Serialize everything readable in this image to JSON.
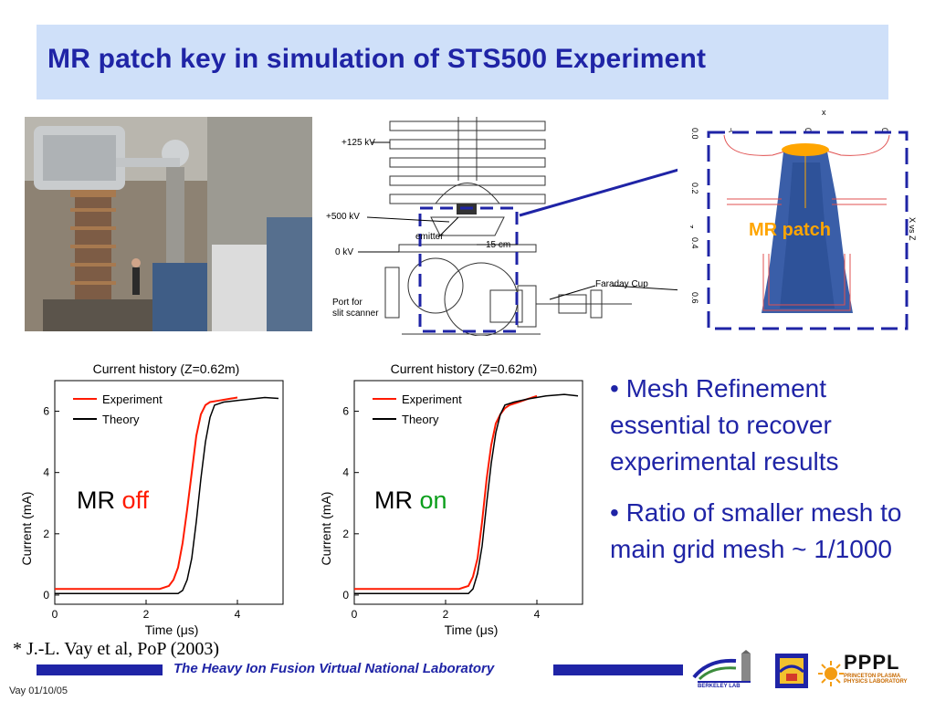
{
  "slide": {
    "title": "MR patch key in simulation of STS500 Experiment"
  },
  "schematic": {
    "label_125kv": "+125 kV",
    "label_500kv": "+500 kV",
    "label_0kv": "0 kV",
    "label_emitter": "emitter",
    "label_15cm": "15 cm",
    "label_faraday": "Faraday Cup",
    "label_port": "Port for",
    "label_scanner": "slit scanner"
  },
  "simulation": {
    "mr_patch_label": "MR patch",
    "x_axis_label": "x",
    "z_axis_label": "z",
    "side_label": "X vs Z",
    "x_ticks": [
      "-0.2",
      "0.0",
      "0.2"
    ],
    "z_ticks": [
      "0.0",
      "0.2",
      "0.4",
      "0.6"
    ]
  },
  "mr_off_label": {
    "prefix": "MR ",
    "state": "off"
  },
  "mr_on_label": {
    "prefix": "MR ",
    "state": "on"
  },
  "bullets": [
    "• Mesh Refinement essential to recover experimental results",
    "•  Ratio of smaller mesh to main grid mesh ~ 1/1000"
  ],
  "citation": "* J.-L. Vay et al, PoP (2003)",
  "footer": {
    "lab_name": "The Heavy Ion Fusion Virtual National Laboratory",
    "author_date": "Vay 01/10/05",
    "pppl": "PPPL",
    "pppl_sub_1": "PRINCETON PLASMA",
    "pppl_sub_2": "PHYSICS LABORATORY",
    "berkeley": "BERKELEY LAB"
  },
  "colors": {
    "title_blue": "#1f24a6",
    "experiment_red": "#ff1a00",
    "theory_black": "#000000",
    "on_green": "#0a9e1a",
    "band_blue": "#cfe0f9",
    "patch_orange": "#ffa500"
  },
  "chart_data": [
    {
      "type": "line",
      "title": "Current history (Z=0.62m)",
      "xlabel": "Time (μs)",
      "ylabel": "Current (mA)",
      "xlim": [
        0,
        5
      ],
      "ylim": [
        -0.3,
        7
      ],
      "xticks": [
        0,
        2,
        4
      ],
      "yticks": [
        0,
        2,
        4,
        6
      ],
      "legend": "top-left",
      "series": [
        {
          "name": "Experiment",
          "color": "#ff1a00",
          "x": [
            0,
            2.3,
            2.5,
            2.6,
            2.7,
            2.8,
            2.9,
            3.0,
            3.1,
            3.2,
            3.3,
            3.4,
            3.6,
            3.8,
            4.0
          ],
          "y": [
            0.2,
            0.2,
            0.3,
            0.5,
            0.9,
            1.7,
            2.8,
            4.0,
            5.2,
            5.9,
            6.2,
            6.3,
            6.35,
            6.4,
            6.45
          ]
        },
        {
          "name": "Theory",
          "color": "#000000",
          "x": [
            0,
            2.7,
            2.8,
            2.9,
            3.0,
            3.1,
            3.2,
            3.3,
            3.4,
            3.5,
            3.7,
            4.0,
            4.3,
            4.6,
            4.9
          ],
          "y": [
            0.05,
            0.05,
            0.15,
            0.5,
            1.2,
            2.4,
            3.8,
            5.0,
            5.8,
            6.2,
            6.3,
            6.35,
            6.4,
            6.45,
            6.42
          ]
        }
      ]
    },
    {
      "type": "line",
      "title": "Current history (Z=0.62m)",
      "xlabel": "Time (μs)",
      "ylabel": "Current (mA)",
      "xlim": [
        0,
        5
      ],
      "ylim": [
        -0.3,
        7
      ],
      "xticks": [
        0,
        2,
        4
      ],
      "yticks": [
        0,
        2,
        4,
        6
      ],
      "legend": "top-left",
      "series": [
        {
          "name": "Experiment",
          "color": "#ff1a00",
          "x": [
            0,
            2.3,
            2.5,
            2.6,
            2.7,
            2.8,
            2.9,
            3.0,
            3.1,
            3.2,
            3.3,
            3.4,
            3.6,
            3.8,
            4.0
          ],
          "y": [
            0.2,
            0.2,
            0.3,
            0.6,
            1.2,
            2.4,
            3.8,
            4.9,
            5.6,
            5.9,
            6.1,
            6.2,
            6.3,
            6.4,
            6.5
          ]
        },
        {
          "name": "Theory",
          "color": "#000000",
          "x": [
            0,
            2.5,
            2.6,
            2.7,
            2.8,
            2.9,
            3.0,
            3.1,
            3.2,
            3.3,
            3.5,
            3.8,
            4.2,
            4.6,
            4.9
          ],
          "y": [
            0.05,
            0.05,
            0.2,
            0.7,
            1.6,
            3.0,
            4.3,
            5.3,
            5.9,
            6.2,
            6.3,
            6.4,
            6.5,
            6.55,
            6.5
          ]
        }
      ]
    }
  ]
}
